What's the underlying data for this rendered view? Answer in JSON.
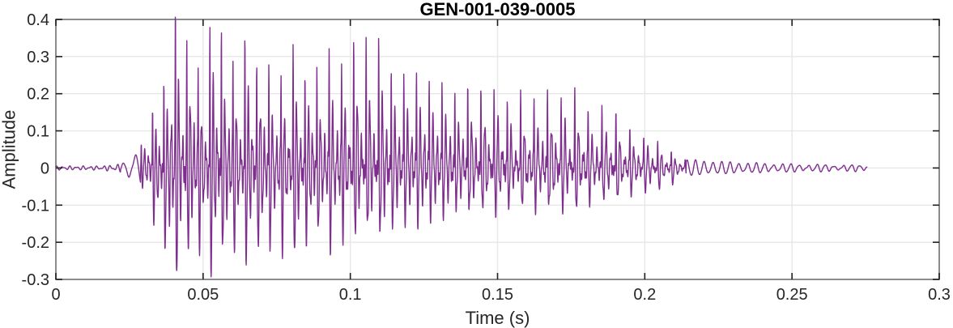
{
  "figure": {
    "background": "#ffffff"
  },
  "chart_data": {
    "type": "line",
    "title": "GEN-001-039-0005",
    "xlabel": "Time (s)",
    "ylabel": "Amplitude",
    "xlim": [
      0,
      0.3
    ],
    "ylim": [
      -0.3,
      0.4
    ],
    "grid": true,
    "legend": null,
    "x_ticks": [
      0,
      0.05,
      0.1,
      0.15,
      0.2,
      0.25,
      0.3
    ],
    "x_tick_labels": [
      "0",
      "0.05",
      "0.1",
      "0.15",
      "0.2",
      "0.25",
      "0.3"
    ],
    "y_ticks": [
      -0.3,
      -0.2,
      -0.1,
      0,
      0.1,
      0.2,
      0.3,
      0.4
    ],
    "y_tick_labels": [
      "-0.3",
      "-0.2",
      "-0.1",
      "0",
      "0.1",
      "0.2",
      "0.3",
      "0.4"
    ],
    "line_color": "#7E2F8E",
    "axis_box_color": "#7f7f7f",
    "grid_color": "#e7e7e7",
    "tick_color": "#1f1f1f",
    "text_color": "#262626",
    "title_color": "#000000",
    "waveform": {
      "description": "speech-like audio waveform, quasi-periodic glottal pulses",
      "t_end": 0.2755,
      "voiced_start": 0.0288,
      "voiced_end": 0.214,
      "period_base": 0.0039,
      "period_slope": 0.005,
      "period_max": 0.0047,
      "seed": 9,
      "peak_abs_max": 0.406,
      "trough_abs_min": -0.293,
      "noise_floor": 0.004,
      "envelope_upper_t": [
        0.029,
        0.0325,
        0.035,
        0.0375,
        0.0391,
        0.043,
        0.0468,
        0.0506,
        0.0531,
        0.0553,
        0.059,
        0.063,
        0.067,
        0.071,
        0.075,
        0.079,
        0.083,
        0.087,
        0.093,
        0.098,
        0.102,
        0.106,
        0.11,
        0.115,
        0.12,
        0.125,
        0.13,
        0.135,
        0.14,
        0.145,
        0.15,
        0.155,
        0.16,
        0.165,
        0.17,
        0.175,
        0.18,
        0.185,
        0.19,
        0.194,
        0.198,
        0.202,
        0.206,
        0.21,
        0.214
      ],
      "envelope_upper": [
        0.07,
        0.13,
        0.18,
        0.24,
        0.405,
        0.37,
        0.33,
        0.24,
        0.35,
        0.37,
        0.31,
        0.3,
        0.31,
        0.3,
        0.28,
        0.27,
        0.28,
        0.29,
        0.3,
        0.32,
        0.34,
        0.33,
        0.31,
        0.295,
        0.28,
        0.265,
        0.25,
        0.235,
        0.225,
        0.21,
        0.2,
        0.2,
        0.205,
        0.19,
        0.2,
        0.185,
        0.185,
        0.17,
        0.145,
        0.12,
        0.1,
        0.08,
        0.06,
        0.045,
        0.03
      ],
      "envelope_lower_t": [
        0.029,
        0.0325,
        0.035,
        0.0375,
        0.0395,
        0.043,
        0.0468,
        0.053,
        0.059,
        0.063,
        0.067,
        0.071,
        0.075,
        0.079,
        0.083,
        0.093,
        0.102,
        0.106,
        0.11,
        0.115,
        0.12,
        0.13,
        0.14,
        0.15,
        0.16,
        0.17,
        0.18,
        0.19,
        0.198,
        0.206,
        0.214
      ],
      "envelope_lower": [
        -0.04,
        -0.09,
        -0.2,
        -0.22,
        -0.29,
        -0.23,
        -0.2,
        -0.24,
        -0.22,
        -0.21,
        -0.22,
        -0.24,
        -0.22,
        -0.21,
        -0.2,
        -0.19,
        -0.17,
        -0.165,
        -0.16,
        -0.17,
        -0.15,
        -0.13,
        -0.115,
        -0.1,
        -0.1,
        -0.1,
        -0.09,
        -0.08,
        -0.06,
        -0.05,
        -0.03
      ]
    }
  }
}
